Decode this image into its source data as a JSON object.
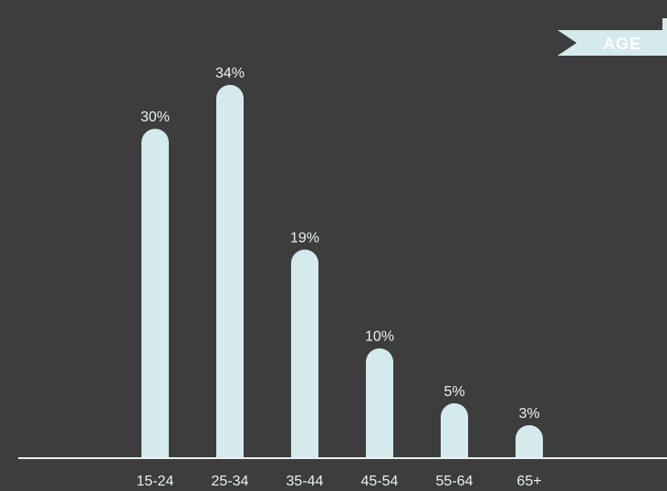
{
  "banner": {
    "label": "AGE"
  },
  "colors": {
    "background": "#3d3d3d",
    "bar": "#d5eaec",
    "axis": "#e6f0f1",
    "text": "#e8f2f3",
    "banner": "#d5eaec"
  },
  "chart_data": {
    "type": "bar",
    "categories": [
      "15-24",
      "25-34",
      "35-44",
      "45-54",
      "55-64",
      "65+"
    ],
    "values": [
      30,
      34,
      19,
      10,
      5,
      3
    ],
    "value_labels": [
      "30%",
      "34%",
      "19%",
      "10%",
      "5%",
      "3%"
    ],
    "title": "AGE",
    "xlabel": "",
    "ylabel": "",
    "ylim": [
      0,
      34
    ],
    "grid": false,
    "bar_style": "rounded-top"
  }
}
